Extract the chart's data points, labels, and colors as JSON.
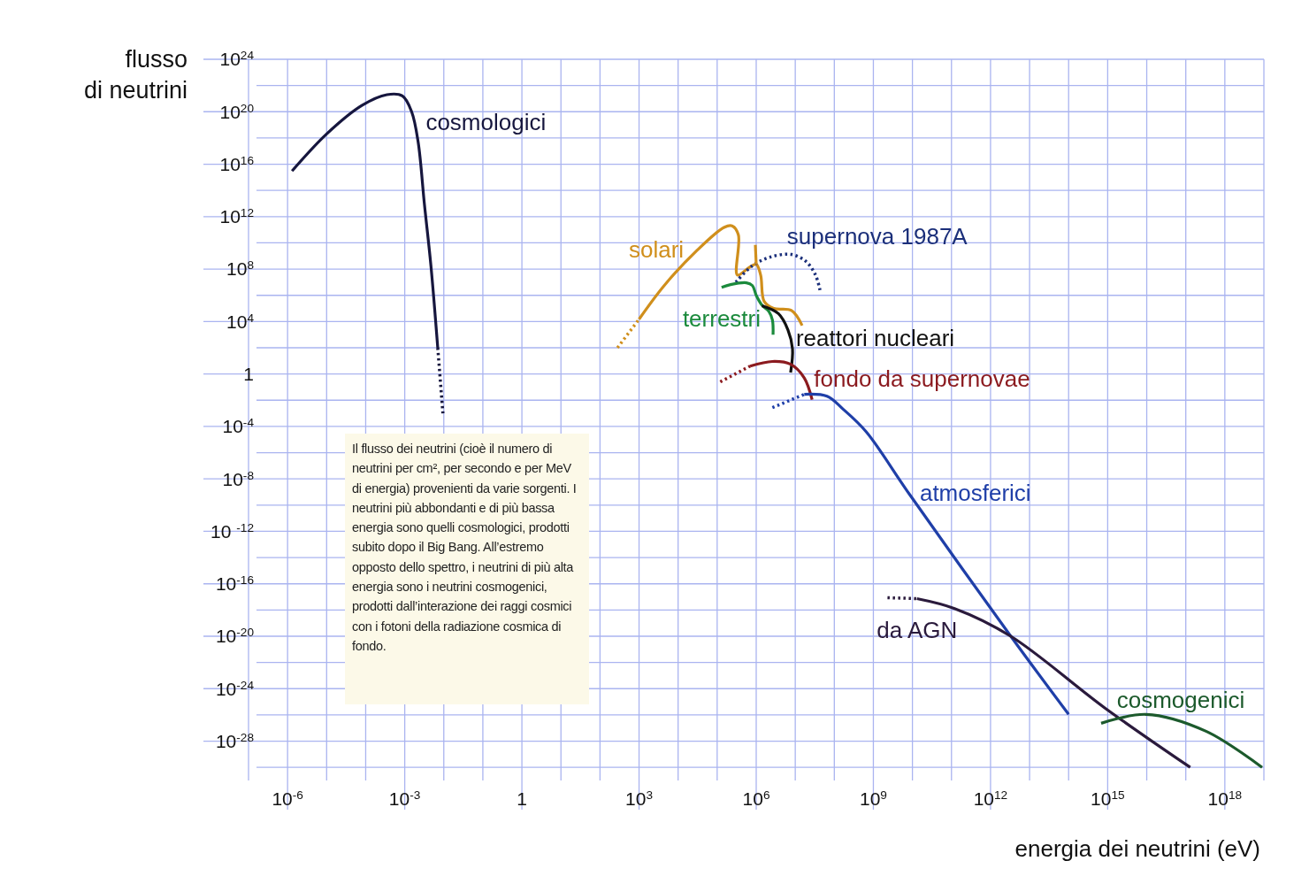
{
  "chart_data": {
    "type": "line",
    "xlabel": "energia dei neutrini (eV)",
    "ylabel": "flusso\ndi neutrini",
    "log": "xy",
    "grid": true,
    "xlim": [
      1e-07,
      1e+19
    ],
    "ylim": [
      1e-31,
      1e+24
    ],
    "xticks": [
      {
        "value": 1e-07,
        "label": null
      },
      {
        "value": 1e-06,
        "label": "10$^{-6}$"
      },
      {
        "value": 1e-05,
        "label": null
      },
      {
        "value": 0.0001,
        "label": null
      },
      {
        "value": 0.001,
        "label": "10$^{-3}$"
      },
      {
        "value": 0.01,
        "label": null
      },
      {
        "value": 0.1,
        "label": null
      },
      1,
      {
        "value": 10,
        "label": null
      },
      {
        "value": 100,
        "label": null
      },
      {
        "value": 1000.0,
        "label": "10$^{3}$"
      },
      {
        "value": 10000.0,
        "label": null
      },
      {
        "value": 100000.0,
        "label": null
      },
      {
        "value": 1000000.0,
        "label": "10$^{6}$"
      },
      {
        "value": 10000000.0,
        "label": null
      },
      {
        "value": 100000000.0,
        "label": null
      },
      {
        "value": 1000000000.0,
        "label": "10$^{9}$"
      },
      {
        "value": 10000000000.0,
        "label": null
      },
      {
        "value": 100000000000.0,
        "label": null
      },
      {
        "value": 1000000000000.0,
        "label": "10$^{12}$"
      },
      {
        "value": 10000000000000.0,
        "label": null
      },
      {
        "value": 100000000000000.0,
        "label": null
      },
      {
        "value": 1000000000000000.0,
        "label": "10$^{15}$"
      },
      {
        "value": 1e+16,
        "label": null
      },
      {
        "value": 1e+17,
        "label": null
      },
      {
        "value": 1e+18,
        "label": "10$^{18}$"
      },
      {
        "value": 1e+19,
        "label": null
      }
    ],
    "yticks": [
      {
        "value": 1e+24,
        "label": "10$^{24}$"
      },
      {
        "value": 1e+22,
        "label": null
      },
      {
        "value": 1e+20,
        "label": "10$^{20}$"
      },
      {
        "value": 1e+18,
        "label": null
      },
      {
        "value": 1e+16,
        "label": "10$^{16}$"
      },
      {
        "value": 100000000000000.0,
        "label": null
      },
      {
        "value": 1000000000000.0,
        "label": "10$^{12}$"
      },
      {
        "value": 10000000000.0,
        "label": null
      },
      {
        "value": 100000000.0,
        "label": "10$^{8}$"
      },
      {
        "value": 1000000.0,
        "label": null
      },
      {
        "value": 10000.0,
        "label": "10$^{4}$"
      },
      {
        "value": 100,
        "label": null
      },
      1,
      {
        "value": 0.01,
        "label": null
      },
      {
        "value": 0.0001,
        "label": "10$^{-4}$"
      },
      {
        "value": 1e-06,
        "label": null
      },
      {
        "value": 1e-08,
        "label": "10$^{-8}$"
      },
      {
        "value": 1e-10,
        "label": null
      },
      {
        "value": 1e-12,
        "label": "10 $^{-12}$"
      },
      {
        "value": 1e-14,
        "label": null
      },
      {
        "value": 1e-16,
        "label": "10$^{-16}$"
      },
      {
        "value": 1e-18,
        "label": null
      },
      {
        "value": 1e-20,
        "label": "10$^{-20}$"
      },
      {
        "value": 1e-22,
        "label": null
      },
      {
        "value": 1e-24,
        "label": "10$^{-24}$"
      },
      {
        "value": 1e-26,
        "label": null
      },
      {
        "value": 1e-28,
        "label": "10$^{-28}$"
      },
      {
        "value": 1e-30,
        "label": null
      }
    ],
    "annotations": [
      "Il flusso dei neutrini (cioè il numero di neutrini per cm², per secondo e per MeV di energia) provenienti da varie sorgenti. I neutrini più abbondanti e di più bassa energia sono quelli cosmologici, prodotti subito dopo il Big Bang. All’estremo opposto dello spettro, i neutrini di più alta energia sono i neutrini cosmogenici, prodotti dall’interazione dei raggi cosmici con i fotoni della radiazione cosmica di fondo."
    ],
    "series": [
      {
        "name": "cosmologici",
        "color": "#16163e",
        "x": [
          1.3e-06,
          1e-05,
          8e-05,
          0.00035,
          0.00087,
          0.0015,
          0.0022,
          0.0032,
          0.0047,
          0.007
        ],
        "values": [
          3000000000000000.0,
          2e+18,
          3e+20,
          2e+21,
          1.6e+21,
          1e+20,
          5e+17,
          8000000000000.0,
          160000000.0,
          100
        ]
      },
      {
        "name": "solari",
        "color": "#d08f1c",
        "x": [
          1000.0,
          4400.0,
          29000.0,
          150000.0,
          240000.0,
          350000.0,
          330000.0,
          630000.0,
          1000000.0,
          1300000.0,
          1600000.0,
          2800000.0,
          8000000.0,
          15000000.0
        ],
        "values": [
          15000.0,
          5500000.0,
          2300000000.0,
          150000000000.0,
          200000000000.0,
          40000000000.0,
          35000000.0,
          120000000.0,
          230000000.0,
          35000000.0,
          340000.0,
          100000.0,
          70000.0,
          5000.0
        ]
      },
      {
        "name": "supernova 1987A",
        "color": "#1b2f7a",
        "line_style": "dotted",
        "x": [
          300000.0,
          780000.0,
          2200000.0,
          8000000.0,
          19000000.0,
          33000000.0,
          43000000.0
        ],
        "values": [
          10000000.0,
          170000000.0,
          800000000.0,
          1300000000.0,
          370000000.0,
          35000000.0,
          2500000.0
        ]
      },
      {
        "name": "terrestri",
        "color": "#1b8a3c",
        "x": [
          130000.0,
          220000.0,
          560000.0,
          800000.0,
          1000000.0,
          1400000.0,
          2100000.0,
          2600000.0,
          2700000.0
        ],
        "values": [
          4000000.0,
          6500000.0,
          9000000.0,
          5500000.0,
          1000000.0,
          180000.0,
          60000.0,
          13000.0,
          1000.0
        ]
      },
      {
        "name": "reattori nucleari",
        "color": "#111111",
        "x": [
          1400000.0,
          3700000.0,
          6500000.0,
          8500000.0,
          7600000.0
        ],
        "values": [
          160000.0,
          40000.0,
          2300.0,
          80,
          1.3
        ]
      },
      {
        "name": "fondo da supernovae",
        "color": "#8b1a1f",
        "x": [
          700000.0,
          2600000.0,
          7600000.0,
          17000000.0,
          27000000.0
        ],
        "values": [
          4,
          9,
          5.5,
          0.5,
          0.011
        ]
      },
      {
        "name": "atmosferici",
        "color": "#1f3fa8",
        "x": [
          17000000.0,
          65000000.0,
          170000000.0,
          650000000.0,
          8700000000.0,
          3300000000000.0,
          100000000000000.0
        ],
        "values": [
          0.028,
          0.02,
          0.002,
          4e-05,
          5.8e-10,
          1e-20,
          1.1e-26
        ]
      },
      {
        "name": "da AGN",
        "color": "#2a1a3c",
        "x": [
          13000000000.0,
          120000000000.0,
          3300000000000.0,
          870000000000000.0,
          1.3e+17
        ],
        "values": [
          7.4e-18,
          1.3e-18,
          1e-20,
          3.2e-26,
          1e-30
        ]
      },
      {
        "name": "cosmogenici",
        "color": "#1c5a2c",
        "x": [
          680000000000000.0,
          9600000000000000.0,
          3.3e+17,
          9e+18
        ],
        "values": [
          2.3e-27,
          1.1e-26,
          5.7e-28,
          1e-30
        ]
      },
      {
        "color": "#16163e",
        "line_style": "dotted",
        "x": [
          0.007,
          0.0095
        ],
        "values": [
          100,
          0.001
        ]
      },
      {
        "color": "#d08f1c",
        "line_style": "dotted",
        "x": [
          280.0,
          1000.0
        ],
        "values": [
          100,
          15000.0
        ]
      },
      {
        "color": "#d08f1c",
        "x": [
          950000.0,
          1000000.0
        ],
        "values": [
          7000000000.0,
          230000000.0
        ]
      },
      {
        "color": "#8b1a1f",
        "line_style": "dotted",
        "x": [
          120000.0,
          700000.0
        ],
        "values": [
          0.25,
          4
        ]
      },
      {
        "color": "#1f3fa8",
        "line_style": "dotted",
        "x": [
          2600000.0,
          17000000.0
        ],
        "values": [
          0.0027,
          0.028
        ]
      },
      {
        "color": "#2a1a3c",
        "line_style": "dotted",
        "x": [
          2300000000.0,
          13000000000.0
        ],
        "values": [
          8.7e-18,
          7.4e-18
        ]
      }
    ]
  }
}
